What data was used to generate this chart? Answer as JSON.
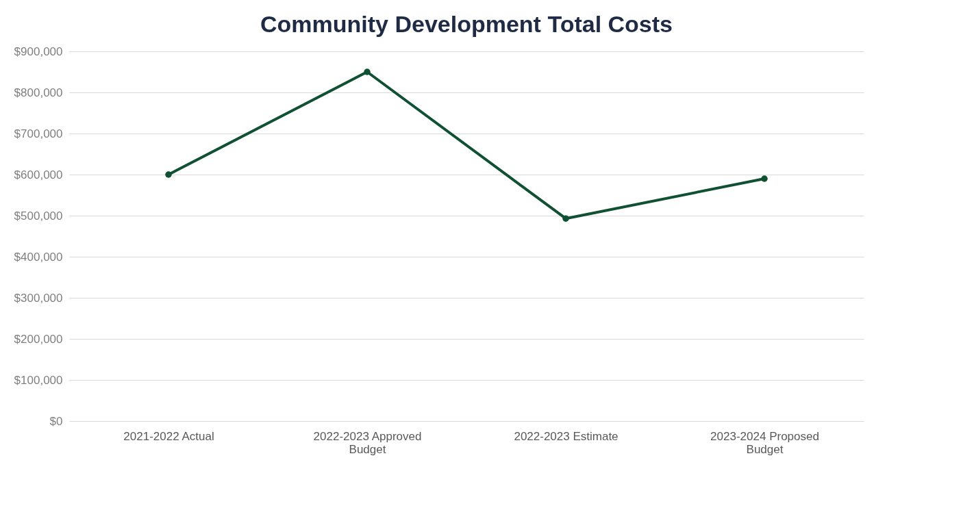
{
  "chart_data": {
    "type": "line",
    "title": "Community Development Total Costs",
    "categories": [
      "2021-2022 Actual",
      "2022-2023 Approved Budget",
      "2022-2023 Estimate",
      "2023-2024 Proposed Budget"
    ],
    "series": [
      {
        "color": "#0f5132",
        "values": [
          600000,
          850000,
          493000,
          590000
        ]
      }
    ],
    "ylim": [
      0,
      900000
    ],
    "yticks": [
      {
        "value": 0,
        "label": "$0"
      },
      {
        "value": 100000,
        "label": "$100,000"
      },
      {
        "value": 200000,
        "label": "$200,000"
      },
      {
        "value": 300000,
        "label": "$300,000"
      },
      {
        "value": 400000,
        "label": "$400,000"
      },
      {
        "value": 500000,
        "label": "$500,000"
      },
      {
        "value": 600000,
        "label": "$600,000"
      },
      {
        "value": 700000,
        "label": "$700,000"
      },
      {
        "value": 800000,
        "label": "$800,000"
      },
      {
        "value": 900000,
        "label": "$900,000"
      }
    ],
    "grid": "y",
    "marker": "circle",
    "line_style": "solid"
  }
}
